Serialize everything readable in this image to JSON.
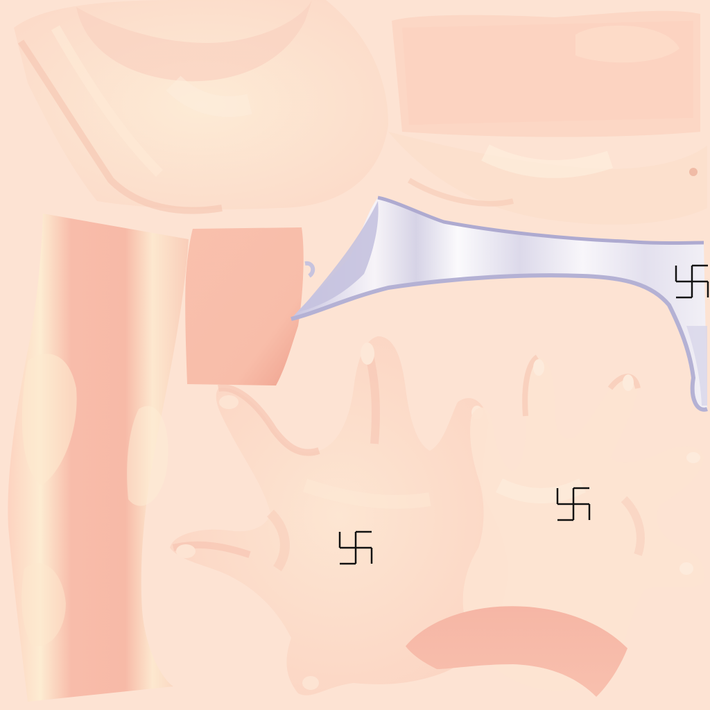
{
  "texture": {
    "description_kind": "uv-skin-texture-atlas",
    "regions": [
      "torso-upper-left",
      "torso-upper-right",
      "arm-strip",
      "arm-patch",
      "underwear-band",
      "left-hand",
      "right-hand",
      "wrist-band"
    ],
    "symbols": [
      "hooked-cross-symbol",
      "hooked-cross-symbol",
      "hooked-cross-symbol"
    ]
  },
  "colors": {
    "background": "#fde3d3",
    "skin_light": "#fde0cf",
    "skin_mid": "#fbd2c0",
    "skin_shadow": "#f6bdaa",
    "skin_deep": "#f4b3a2",
    "skin_highlight": "#fdeed6",
    "fabric_white": "#f8f6fa",
    "fabric_shadow": "#b9b7d8",
    "symbol_ink": "#111111"
  }
}
